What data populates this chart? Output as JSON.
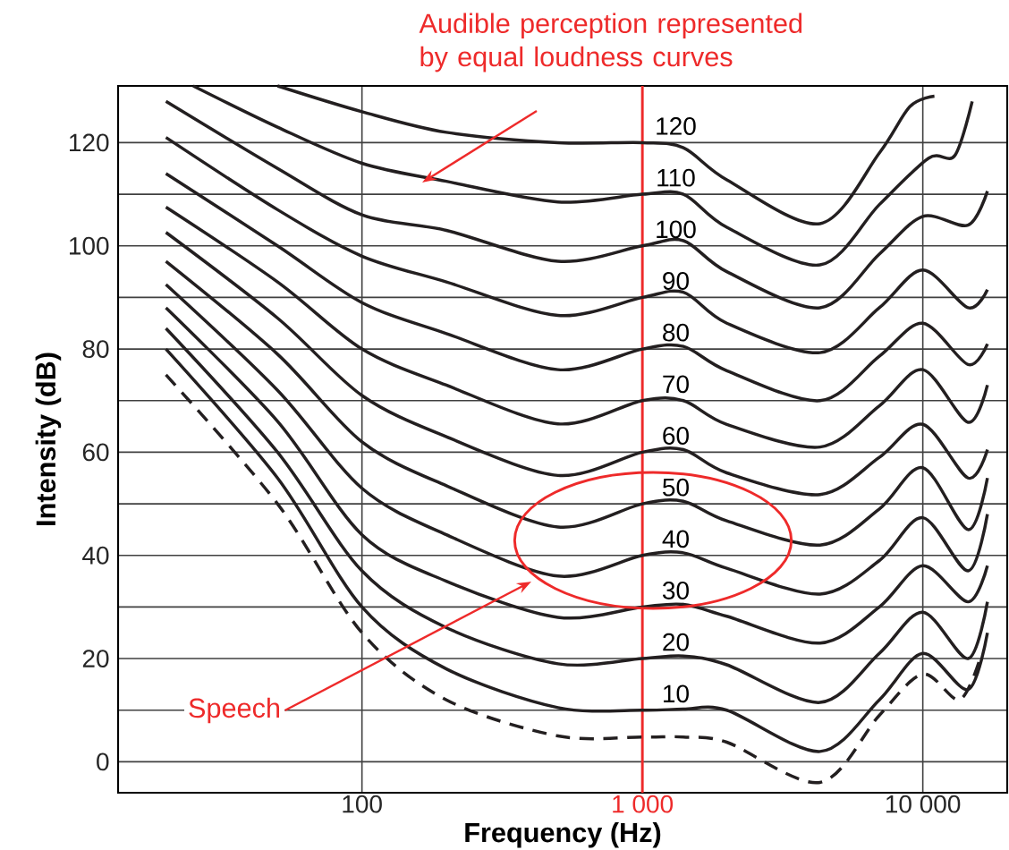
{
  "chart_data": {
    "type": "line",
    "xlabel": "Frequency (Hz)",
    "ylabel": "Intensity (dB)",
    "log": "x",
    "grid": true,
    "marker": "none",
    "xlim": [
      13.5,
      20000
    ],
    "ylim": [
      -6,
      131
    ],
    "xticks": [
      100,
      {
        "value": 1000,
        "label": "1 000"
      },
      {
        "value": 10000,
        "label": "10 000"
      }
    ],
    "yticks": [
      0,
      20,
      40,
      60,
      80,
      100,
      120
    ],
    "x": [
      20,
      50,
      100,
      200,
      500,
      1000,
      1400,
      2000,
      4300,
      7000,
      10000,
      14500,
      17000
    ],
    "series": [
      {
        "name": "120",
        "color": "#231f20",
        "x": [
          50,
          100,
          200,
          500,
          1000,
          1400,
          2000,
          4300,
          7000,
          9000,
          11000
        ],
        "values": [
          131,
          126,
          122,
          120,
          120,
          119,
          112.8,
          104.3,
          118,
          127,
          129
        ]
      },
      {
        "name": "110",
        "color": "#231f20",
        "x": [
          25,
          50,
          100,
          200,
          500,
          1000,
          1400,
          2000,
          4300,
          7000,
          10500,
          13000,
          15000
        ],
        "values": [
          131,
          123,
          116,
          112.5,
          108.5,
          110,
          110,
          103.6,
          96.3,
          108,
          117,
          117.5,
          128
        ]
      },
      {
        "name": "100",
        "color": "#231f20",
        "values": [
          128,
          115,
          106,
          103,
          97,
          100,
          101,
          95,
          88,
          98.4,
          105.7,
          104,
          110.6
        ]
      },
      {
        "name": "90",
        "color": "#231f20",
        "values": [
          121,
          107,
          98,
          93,
          86.5,
          90,
          91,
          85,
          79.3,
          88,
          95.3,
          88,
          91.5
        ]
      },
      {
        "name": "80",
        "color": "#231f20",
        "values": [
          114,
          100,
          89,
          83,
          76,
          80,
          80.5,
          75.8,
          70,
          78.6,
          85,
          77,
          81
        ]
      },
      {
        "name": "70",
        "color": "#231f20",
        "values": [
          107.5,
          93,
          80,
          73,
          65.5,
          70,
          70,
          65.4,
          61,
          69,
          76,
          65.8,
          73
        ]
      },
      {
        "name": "60",
        "color": "#231f20",
        "values": [
          102.6,
          86,
          71,
          63,
          55.5,
          60,
          60.5,
          56,
          51.8,
          59,
          65.4,
          55,
          60.5
        ]
      },
      {
        "name": "50",
        "color": "#231f20",
        "values": [
          97,
          79,
          62,
          53.5,
          45.5,
          50,
          50.5,
          46.7,
          42,
          49,
          57,
          45,
          55
        ]
      },
      {
        "name": "40",
        "color": "#231f20",
        "values": [
          92.5,
          72,
          53,
          44,
          36,
          40,
          40.5,
          37.5,
          32.5,
          39,
          47.3,
          37,
          48
        ]
      },
      {
        "name": "30",
        "color": "#231f20",
        "values": [
          88,
          66,
          44,
          35,
          28,
          30,
          30.5,
          28.2,
          23,
          30,
          38,
          31,
          38
        ]
      },
      {
        "name": "20",
        "color": "#231f20",
        "values": [
          84,
          60,
          37,
          26,
          19,
          20,
          20.5,
          18.8,
          11.5,
          21,
          29,
          20,
          31
        ]
      },
      {
        "name": "10",
        "color": "#231f20",
        "values": [
          80,
          55,
          30,
          18,
          10.5,
          10,
          10.2,
          10,
          2,
          12,
          21,
          14,
          25
        ]
      },
      {
        "color": "#231f20",
        "line_style": "dashed",
        "x": [
          20,
          50,
          100,
          200,
          500,
          1000,
          1400,
          2000,
          4300,
          7000,
          10000,
          13500,
          16000
        ],
        "values": [
          75,
          50,
          25,
          12,
          5,
          4.8,
          4.8,
          3.8,
          -4,
          9,
          17,
          12,
          20
        ]
      }
    ],
    "ref_lines": [
      {
        "axis": "x",
        "value": 1000,
        "color": "#ee2a2a"
      }
    ],
    "annotations": [
      "Audible perception represented by equal loudness curves",
      "Speech"
    ]
  }
}
